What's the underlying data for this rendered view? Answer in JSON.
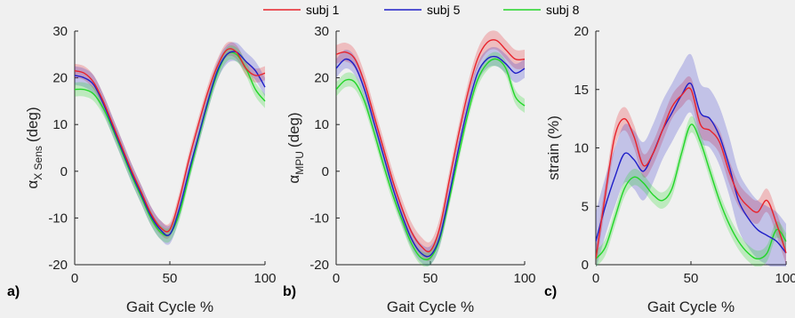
{
  "legend": [
    {
      "label": "subj 1",
      "color": "#e8232b"
    },
    {
      "label": "subj 5",
      "color": "#1f1fc8"
    },
    {
      "label": "subj 8",
      "color": "#22d628"
    }
  ],
  "panels": [
    {
      "letter": "a)",
      "ylabel_main": "α",
      "ylabel_sub": "X Sens",
      "ylabel_unit": "(deg)",
      "xlabel": "Gait Cycle %"
    },
    {
      "letter": "b)",
      "ylabel_main": "α",
      "ylabel_sub": "MPU",
      "ylabel_unit": "(deg)",
      "xlabel": "Gait Cycle %"
    },
    {
      "letter": "c)",
      "ylabel_main": "strain (%)",
      "ylabel_sub": "",
      "ylabel_unit": "",
      "xlabel": "Gait Cycle %"
    }
  ],
  "chart_data": [
    {
      "type": "line",
      "title": "",
      "xlabel": "Gait Cycle %",
      "ylabel": "α X Sens (deg)",
      "xlim": [
        0,
        100
      ],
      "ylim": [
        -20,
        30
      ],
      "xticks": [
        0,
        50,
        100
      ],
      "yticks": [
        -20,
        -10,
        0,
        10,
        20,
        30
      ],
      "x": [
        0,
        5,
        10,
        15,
        20,
        25,
        30,
        35,
        40,
        45,
        50,
        55,
        60,
        65,
        70,
        75,
        80,
        85,
        90,
        95,
        100
      ],
      "series": [
        {
          "name": "subj 1",
          "color": "#e8232b",
          "band": 1.5,
          "values": [
            21.5,
            21,
            19,
            15,
            10,
            5,
            0,
            -4.5,
            -9,
            -12,
            -12.5,
            -6,
            2.5,
            10,
            17,
            22.5,
            26,
            25.5,
            22,
            20.5,
            21
          ]
        },
        {
          "name": "subj 5",
          "color": "#1f1fc8",
          "band": 2,
          "values": [
            20.5,
            20,
            18.5,
            14.5,
            9.5,
            4.5,
            -0.5,
            -5,
            -9.5,
            -12.5,
            -13.5,
            -8,
            0,
            7.5,
            15,
            21.5,
            25,
            25.5,
            23.5,
            21.5,
            18
          ]
        },
        {
          "name": "subj 8",
          "color": "#22d628",
          "band": 1.5,
          "values": [
            17.5,
            17.5,
            16.5,
            13.5,
            9,
            4,
            -1,
            -5.5,
            -10,
            -13,
            -13.5,
            -9,
            -1,
            7,
            14.5,
            21,
            25,
            25,
            22,
            17.5,
            15
          ]
        }
      ]
    },
    {
      "type": "line",
      "title": "",
      "xlabel": "Gait Cycle %",
      "ylabel": "α MPU (deg)",
      "xlim": [
        0,
        100
      ],
      "ylim": [
        -20,
        30
      ],
      "xticks": [
        0,
        50,
        100
      ],
      "yticks": [
        -20,
        -10,
        0,
        10,
        20,
        30
      ],
      "x": [
        0,
        5,
        10,
        15,
        20,
        25,
        30,
        35,
        40,
        45,
        50,
        55,
        60,
        65,
        70,
        75,
        80,
        85,
        90,
        95,
        100
      ],
      "series": [
        {
          "name": "subj 1",
          "color": "#e8232b",
          "band": 2,
          "values": [
            25,
            25.5,
            24,
            19,
            12,
            5,
            -2,
            -8,
            -13,
            -16,
            -17,
            -12,
            -2,
            8,
            17,
            24,
            27.5,
            28,
            26,
            24,
            24
          ]
        },
        {
          "name": "subj 5",
          "color": "#1f1fc8",
          "band": 2,
          "values": [
            22,
            24,
            22.5,
            17.5,
            10.5,
            3.5,
            -3.5,
            -9.5,
            -14.5,
            -17.5,
            -18,
            -14,
            -5,
            5,
            14,
            21,
            24,
            24.5,
            23,
            21,
            22
          ]
        },
        {
          "name": "subj 8",
          "color": "#22d628",
          "band": 1.5,
          "values": [
            17.5,
            19.5,
            19,
            15,
            8.5,
            1.5,
            -5,
            -10.5,
            -15.5,
            -18.5,
            -18.5,
            -14.5,
            -6,
            3.5,
            12.5,
            19.5,
            23,
            24,
            22,
            16,
            14
          ]
        }
      ]
    },
    {
      "type": "line",
      "title": "",
      "xlabel": "Gait Cycle %",
      "ylabel": "strain (%)",
      "xlim": [
        0,
        100
      ],
      "ylim": [
        0,
        20
      ],
      "xticks": [
        0,
        50,
        100
      ],
      "yticks": [
        0,
        5,
        10,
        15,
        20
      ],
      "x": [
        0,
        5,
        10,
        15,
        20,
        25,
        30,
        35,
        40,
        45,
        50,
        55,
        60,
        65,
        70,
        75,
        80,
        85,
        90,
        95,
        100
      ],
      "series": [
        {
          "name": "subj 1",
          "color": "#e8232b",
          "band": 1,
          "values": [
            0.5,
            6,
            11,
            12.5,
            11,
            8.5,
            9.5,
            11.5,
            13.5,
            14.5,
            15,
            12,
            11.5,
            10.5,
            8,
            6,
            5,
            4.5,
            5.5,
            3.5,
            1
          ]
        },
        {
          "name": "subj 5",
          "color": "#1f1fc8",
          "band": 2.5,
          "values": [
            2,
            5,
            7.5,
            9.5,
            9,
            8,
            9.5,
            11.5,
            13,
            14.5,
            15.5,
            13,
            12.5,
            11,
            8.5,
            5.5,
            4,
            3,
            2.5,
            2,
            1
          ]
        },
        {
          "name": "subj 8",
          "color": "#22d628",
          "band": 0.7,
          "values": [
            0.5,
            1.5,
            4,
            6.5,
            7.5,
            7,
            6,
            5.5,
            6.5,
            9.5,
            12,
            10.5,
            8,
            5.5,
            3.5,
            2,
            1,
            0.5,
            1,
            3,
            2
          ]
        }
      ]
    }
  ]
}
